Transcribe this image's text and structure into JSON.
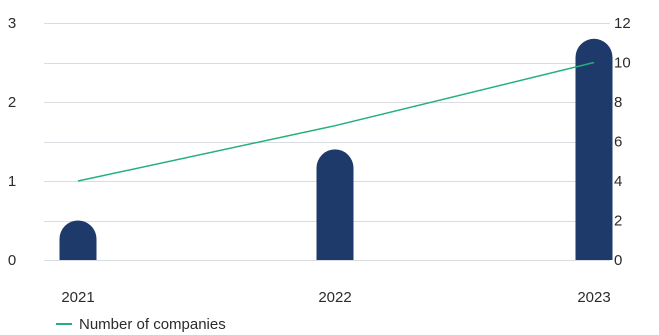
{
  "chart_data": {
    "type": "bar",
    "categories": [
      "2021",
      "2022",
      "2023"
    ],
    "series": [
      {
        "name": "",
        "type": "bar",
        "axis": "left",
        "values": [
          0.5,
          1.4,
          2.8
        ]
      },
      {
        "name": "Number of companies",
        "type": "line",
        "axis": "right",
        "values": [
          4,
          6.8,
          10
        ]
      }
    ],
    "y_left": {
      "min": 0,
      "max": 3,
      "ticks": [
        0,
        1,
        2,
        3
      ]
    },
    "y_right": {
      "min": 0,
      "max": 12,
      "ticks": [
        0,
        2,
        4,
        6,
        8,
        10,
        12
      ]
    },
    "grid": true,
    "legend_position": "bottom-left",
    "colors": {
      "bar": "#1e3a6a",
      "line": "#23b07d",
      "grid": "#d9dce1"
    }
  },
  "legend": {
    "label": "Number of companies"
  }
}
